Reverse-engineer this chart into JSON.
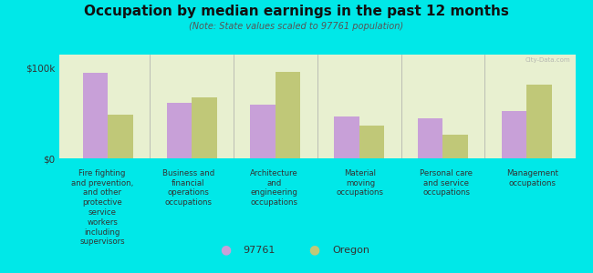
{
  "title": "Occupation by median earnings in the past 12 months",
  "subtitle": "(Note: State values scaled to 97761 population)",
  "background_outer": "#00e8e8",
  "background_inner_top": "#e8f0d0",
  "background_inner_bottom": "#d8e8c0",
  "categories": [
    "Fire fighting\nand prevention,\nand other\nprotective\nservice\nworkers\nincluding\nsupervisors",
    "Business and\nfinancial\noperations\noccupations",
    "Architecture\nand\nengineering\noccupations",
    "Material\nmoving\noccupations",
    "Personal care\nand service\noccupations",
    "Management\noccupations"
  ],
  "values_97761": [
    95000,
    62000,
    60000,
    46000,
    44000,
    52000
  ],
  "values_oregon": [
    48000,
    68000,
    96000,
    36000,
    26000,
    82000
  ],
  "color_97761": "#c8a0d8",
  "color_oregon": "#c0c878",
  "bar_width": 0.3,
  "ylim": [
    0,
    115000
  ],
  "yticks": [
    0,
    100000
  ],
  "ytick_labels": [
    "$0",
    "$100k"
  ],
  "legend_97761": "97761",
  "legend_oregon": "Oregon",
  "watermark": "City-Data.com"
}
